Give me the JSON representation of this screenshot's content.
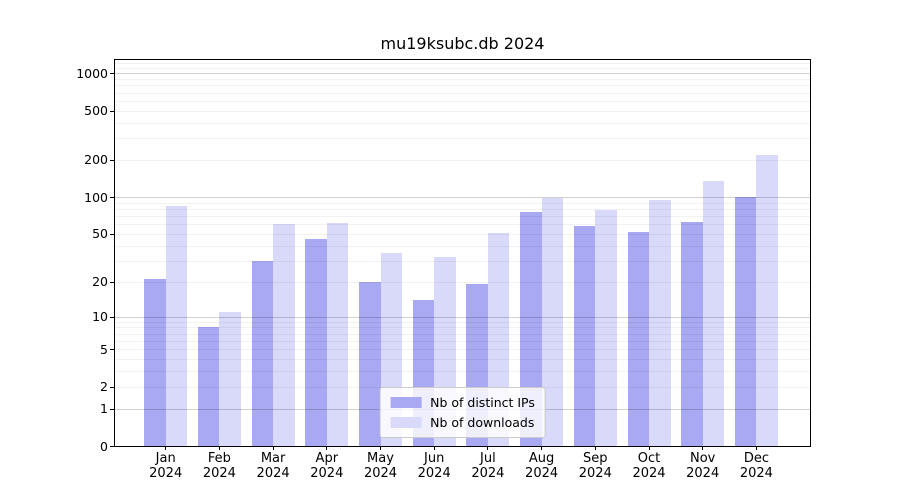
{
  "chart_data": {
    "type": "bar",
    "title": "mu19ksubc.db 2024",
    "scale": "log1p",
    "grid": true,
    "legend_position": "lower center",
    "categories": [
      "Jan",
      "Feb",
      "Mar",
      "Apr",
      "May",
      "Jun",
      "Jul",
      "Aug",
      "Sep",
      "Oct",
      "Nov",
      "Dec"
    ],
    "category_year": "2024",
    "yticks": [
      0,
      1,
      2,
      5,
      10,
      20,
      50,
      100,
      200,
      500,
      1000
    ],
    "ylim": [
      0,
      1280
    ],
    "series": [
      {
        "name": "Nb of distinct IPs",
        "color": "#a8a8f3",
        "values": [
          21,
          8,
          30,
          45,
          20,
          14,
          19,
          75,
          58,
          52,
          63,
          101
        ]
      },
      {
        "name": "Nb of downloads",
        "color": "#d9d9fa",
        "values": [
          84,
          11,
          60,
          61,
          35,
          32,
          51,
          98,
          78,
          94,
          135,
          220
        ]
      }
    ]
  }
}
